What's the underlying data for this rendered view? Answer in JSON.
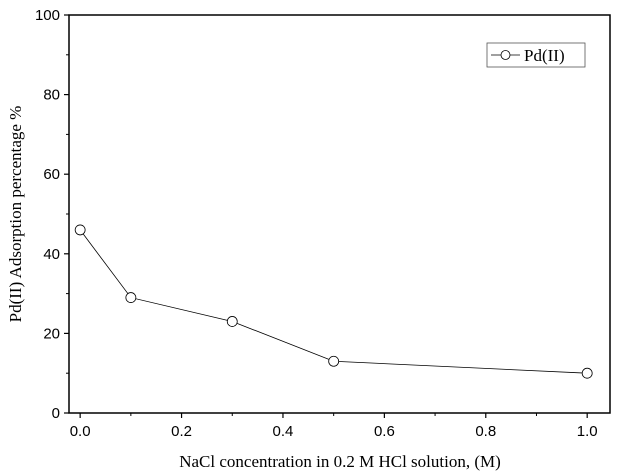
{
  "chart_data": {
    "type": "line",
    "title": "",
    "xlabel": "NaCl concentration in 0.2 M HCl solution, (M)",
    "ylabel": "Pd(II) Adsorption percentage %",
    "xlim": [
      -0.022,
      1.045
    ],
    "ylim": [
      0,
      100
    ],
    "xticks": [
      0.0,
      0.2,
      0.4,
      0.6,
      0.8,
      1.0
    ],
    "xtick_labels": [
      "0.0",
      "0.2",
      "0.4",
      "0.6",
      "0.8",
      "1.0"
    ],
    "yticks": [
      0,
      20,
      40,
      60,
      80,
      100
    ],
    "ytick_labels": [
      "0",
      "20",
      "40",
      "60",
      "80",
      "100"
    ],
    "grid": false,
    "legend_position": "top-right",
    "series": [
      {
        "name": "Pd(II)",
        "x": [
          0,
          0.1,
          0.3,
          0.5,
          1.0
        ],
        "y": [
          46,
          29,
          23,
          13,
          10
        ],
        "color": "#000000",
        "marker": "open-circle"
      }
    ]
  }
}
